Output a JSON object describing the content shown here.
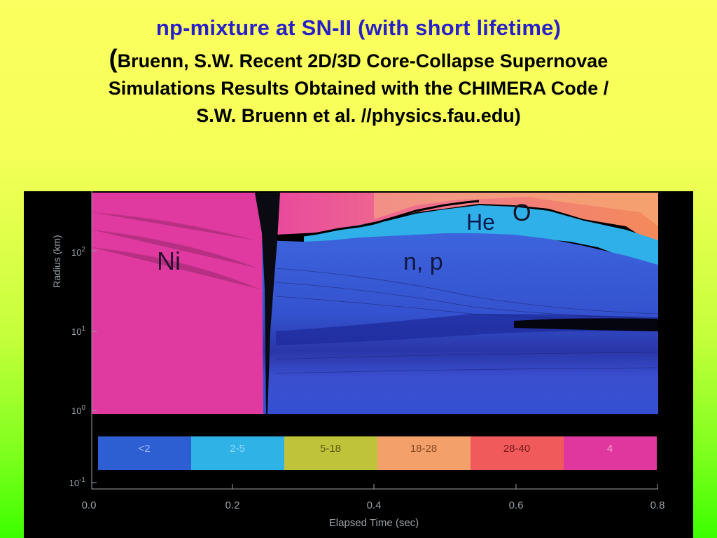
{
  "slide": {
    "title": "np-mixture at SN-II (with short lifetime)",
    "ref_open_paren": "(",
    "ref_line1": "Bruenn, S.W. Recent 2D/3D Core-Collapse Supernovae",
    "ref_line2": "Simulations Results Obtained with the CHIMERA Code /",
    "ref_line3": "S.W. Bruenn et al. //physics.fau.edu)"
  },
  "figure": {
    "y_axis_title": "Radius (km)",
    "x_axis_title": "Elapsed Time (sec)",
    "y_ticks": [
      "10^2",
      "10^1",
      "10^0",
      "10^-1"
    ],
    "x_ticks": [
      "0.0",
      "0.2",
      "0.4",
      "0.6",
      "0.8"
    ],
    "region_labels": {
      "ni": "Ni",
      "np": "n, p",
      "he": "He",
      "o": "O"
    },
    "colorbar": [
      {
        "label": "<2",
        "color": "#2e5fd2"
      },
      {
        "label": "2-5",
        "color": "#2fb3e6"
      },
      {
        "label": "5-18",
        "color": "#bfc33a"
      },
      {
        "label": "18-28",
        "color": "#f4a06a"
      },
      {
        "label": "28-40",
        "color": "#f05a5a"
      },
      {
        "label": "4",
        "color": "#e0379e"
      }
    ],
    "colors": {
      "ni_region": "#e03aa0",
      "np_region": "#3a56d4",
      "he_region": "#2fb0e8",
      "o_region": "#f08a70"
    }
  }
}
